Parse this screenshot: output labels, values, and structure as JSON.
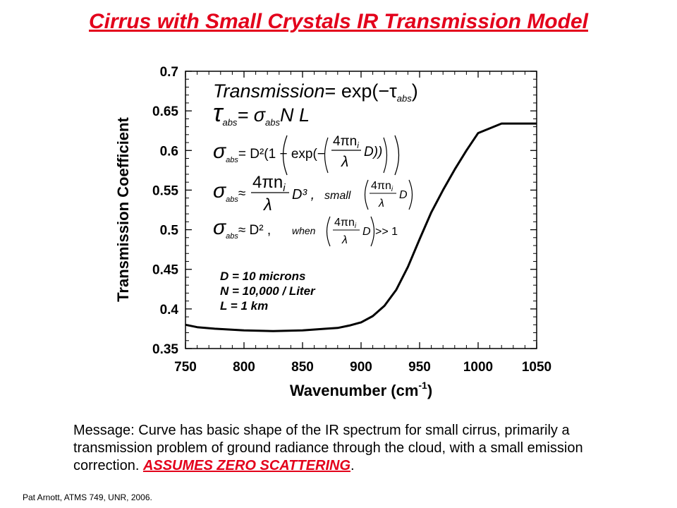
{
  "slide": {
    "title": "Cirrus with Small Crystals IR Transmission Model",
    "message_text": "Message:  Curve has basic shape of the IR spectrum for small cirrus, primarily a transmission problem of ground radiance through the cloud, with a small emission correction.  ",
    "message_emphasis": "ASSUMES ZERO SCATTERING",
    "message_end": ".",
    "footer": "Pat Arnott, ATMS 749, UNR, 2006."
  },
  "equations": {
    "eq1_lhs": "Transmission",
    "eq1_rhs": "= exp(−τ",
    "eq1_sub": "abs",
    "eq1_close": ")",
    "eq2_lhs": "τ",
    "eq2_sub": "abs",
    "eq2_rhs": "= σ",
    "eq2_sub2": "abs",
    "eq2_tail": "N L",
    "eq3_lhs": "σ",
    "eq3_sub": "abs",
    "eq3_rhs": "= D²(1 − exp(−",
    "eq3_frac_num": "4πn",
    "eq3_frac_num_sub": "i",
    "eq3_frac_den": "λ",
    "eq3_tail": "D))",
    "eq4_lhs": "σ",
    "eq4_sub": "abs",
    "eq4_approx": "≈",
    "eq4_frac_num": "4πn",
    "eq4_frac_num_sub": "i",
    "eq4_frac_den": "λ",
    "eq4_tail": "D³ ,",
    "eq4_cond": "small",
    "eq4_cond_num": "4πn",
    "eq4_cond_num_sub": "i",
    "eq4_cond_den": "λ",
    "eq4_cond_tail": "D",
    "eq5_lhs": "σ",
    "eq5_sub": "abs",
    "eq5_rhs": "≈ D² ,",
    "eq5_cond": "when",
    "eq5_cond_num": "4πn",
    "eq5_cond_num_sub": "i",
    "eq5_cond_den": "λ",
    "eq5_cond_tail": "D",
    "eq5_cond_rel": ">> 1"
  },
  "parameters": {
    "line1": "D =  10 microns",
    "line2": "N =  10,000 / Liter",
    "line3": "L = 1 km"
  },
  "chart_data": {
    "type": "line",
    "title": "",
    "xlabel": "Wavenumber (cm",
    "xlabel_sup": "-1",
    "xlabel_end": ")",
    "ylabel": "Transmission Coefficient",
    "xlim": [
      750,
      1050
    ],
    "ylim": [
      0.35,
      0.7
    ],
    "x_ticks": [
      750,
      800,
      850,
      900,
      950,
      1000,
      1050
    ],
    "y_ticks": [
      "0.35",
      "0.4",
      "0.45",
      "0.5",
      "0.55",
      "0.6",
      "0.65",
      "0.7"
    ],
    "grid": false,
    "line_color": "#000000",
    "series": [
      {
        "x": [
          750,
          760,
          775,
          800,
          825,
          850,
          870,
          880,
          890,
          900,
          910,
          920,
          930,
          940,
          950,
          960,
          970,
          980,
          990,
          1000,
          1020,
          1040,
          1050
        ],
        "y": [
          0.38,
          0.377,
          0.375,
          0.373,
          0.372,
          0.373,
          0.375,
          0.376,
          0.379,
          0.383,
          0.391,
          0.404,
          0.424,
          0.453,
          0.488,
          0.522,
          0.55,
          0.576,
          0.6,
          0.622,
          0.634,
          0.634,
          0.634
        ]
      }
    ]
  }
}
